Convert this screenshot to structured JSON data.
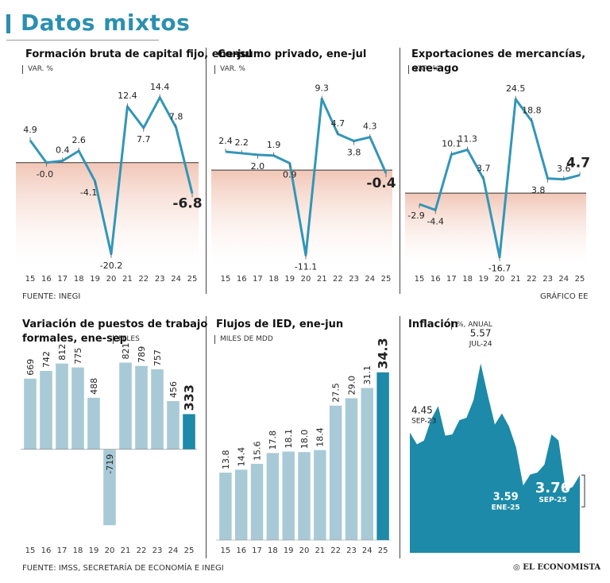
{
  "header": {
    "title": "Datos mixtos"
  },
  "footer": {
    "source_top": "FUENTE: INEGI",
    "credit": "GRÁFICO EE",
    "source_bottom": "FUENTE: IMSS, SECRETARÍA DE ECONOMÍA E INEGI",
    "logo_text": "EL ECONOMISTA"
  },
  "colors": {
    "accent": "#2b8fb0",
    "line": "#3296b8",
    "bar": "#a8cad6",
    "bar_highlight": "#1c8aa8",
    "negative_fill": "#f1c6b6",
    "area": "#1c8aa8"
  },
  "chart_data": [
    {
      "id": "fbcf",
      "type": "line",
      "title": "Formación bruta de capital fijo, ene-jul",
      "unit": "VAR. %",
      "categories": [
        "15",
        "16",
        "17",
        "18",
        "19",
        "20",
        "21",
        "22",
        "23",
        "24",
        "25"
      ],
      "values": [
        4.9,
        -0.0,
        0.4,
        2.6,
        -4.1,
        -20.2,
        12.4,
        7.7,
        14.4,
        7.8,
        -6.8
      ],
      "labels": [
        "4.9",
        "-0.0",
        "0.4",
        "2.6",
        "-4.1",
        "-20.2",
        "12.4",
        "7.7",
        "14.4",
        "7.8",
        "-6.8"
      ],
      "ylim": [
        -22,
        17
      ]
    },
    {
      "id": "consumo",
      "type": "line",
      "title": "Consumo privado, ene-jul",
      "unit": "VAR. %",
      "categories": [
        "15",
        "16",
        "17",
        "18",
        "19",
        "20",
        "21",
        "22",
        "23",
        "24",
        "25"
      ],
      "values": [
        2.4,
        2.2,
        2.0,
        1.9,
        0.9,
        -11.1,
        9.3,
        4.7,
        3.8,
        4.3,
        -0.4
      ],
      "labels": [
        "2.4",
        "2.2",
        "2.0",
        "1.9",
        "0.9",
        "-11.1",
        "9.3",
        "4.7",
        "3.8",
        "4.3",
        "-0.4"
      ],
      "ylim": [
        -12,
        11
      ]
    },
    {
      "id": "export",
      "type": "line",
      "title": "Exportaciones de mercancías, ene-ago",
      "unit": "VAR. %",
      "categories": [
        "15",
        "16",
        "17",
        "18",
        "19",
        "20",
        "21",
        "22",
        "23",
        "24",
        "25"
      ],
      "values": [
        -2.9,
        -4.4,
        10.1,
        11.3,
        3.7,
        -16.7,
        24.5,
        18.8,
        3.8,
        3.6,
        4.7
      ],
      "labels": [
        "-2.9",
        "-4.4",
        "10.1",
        "11.3",
        "3.7",
        "-16.7",
        "24.5",
        "18.8",
        "3.8",
        "3.6",
        "4.7"
      ],
      "ylim": [
        -18,
        28
      ]
    },
    {
      "id": "empleo",
      "type": "bar",
      "title": "Variación de puestos de trabajo formales, ene-sep",
      "title_line1": "Variación de puestos de trabajo",
      "title_line2": "formales, ene-sep",
      "unit": "MILES",
      "categories": [
        "15",
        "16",
        "17",
        "18",
        "19",
        "20",
        "21",
        "22",
        "23",
        "24",
        "25"
      ],
      "values": [
        669,
        742,
        812,
        775,
        488,
        -719,
        821,
        789,
        757,
        456,
        333
      ],
      "labels": [
        "669",
        "742",
        "812",
        "775",
        "488",
        "-719",
        "821",
        "789",
        "757",
        "456",
        "333"
      ],
      "ylim": [
        -800,
        900
      ]
    },
    {
      "id": "ied",
      "type": "bar",
      "title": "Flujos de IED, ene-jun",
      "unit": "MILES DE MDD",
      "categories": [
        "15",
        "16",
        "17",
        "18",
        "19",
        "20",
        "21",
        "22",
        "23",
        "24",
        "25"
      ],
      "values": [
        13.8,
        14.4,
        15.6,
        17.8,
        18.1,
        18.0,
        18.4,
        27.5,
        29.0,
        31.1,
        34.3
      ],
      "labels": [
        "13.8",
        "14.4",
        "15.6",
        "17.8",
        "18.1",
        "18.0",
        "18.4",
        "27.5",
        "29.0",
        "31.1",
        "34.3"
      ],
      "ylim": [
        0,
        38
      ]
    },
    {
      "id": "inflacion",
      "type": "area",
      "title": "Inflación",
      "unit": "%, ANUAL",
      "values": [
        4.45,
        4.26,
        4.32,
        4.66,
        4.88,
        4.4,
        4.42,
        4.65,
        4.69,
        4.98,
        5.57,
        5.06,
        4.58,
        4.76,
        4.55,
        4.21,
        3.59,
        3.77,
        3.8,
        3.93,
        4.42,
        4.32,
        3.51,
        3.57,
        3.76
      ],
      "annotations": [
        {
          "index": 0,
          "value": "4.45",
          "date": "SEP-23"
        },
        {
          "index": 10,
          "value": "5.57",
          "date": "JUL-24"
        },
        {
          "index": 16,
          "value": "3.59",
          "date": "ENE-25"
        },
        {
          "index": 24,
          "value": "3.76",
          "date": "SEP-25"
        }
      ],
      "ylim": [
        2.5,
        5.9
      ]
    }
  ]
}
